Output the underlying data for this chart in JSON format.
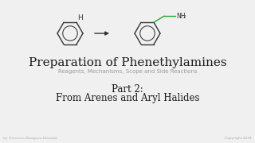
{
  "bg_color": "#f0f0f0",
  "title": "Preparation of Phenethylamines",
  "subtitle": "Reagents, Mechanisms, Scope and Side Reactions",
  "part_line1": "Part 2:",
  "part_line2": "From Arenes and Aryl Halides",
  "footer_left": "by Florencio Zaragoza Dörwald",
  "footer_right": "Copyright 2024",
  "title_color": "#1a1a1a",
  "subtitle_color": "#999999",
  "part_color": "#1a1a1a",
  "footer_color": "#aaaaaa",
  "arrow_color": "#333333",
  "benzene_color": "#333333",
  "chain_color": "#22aa22",
  "nh2_color": "#333333",
  "lw": 1.0
}
